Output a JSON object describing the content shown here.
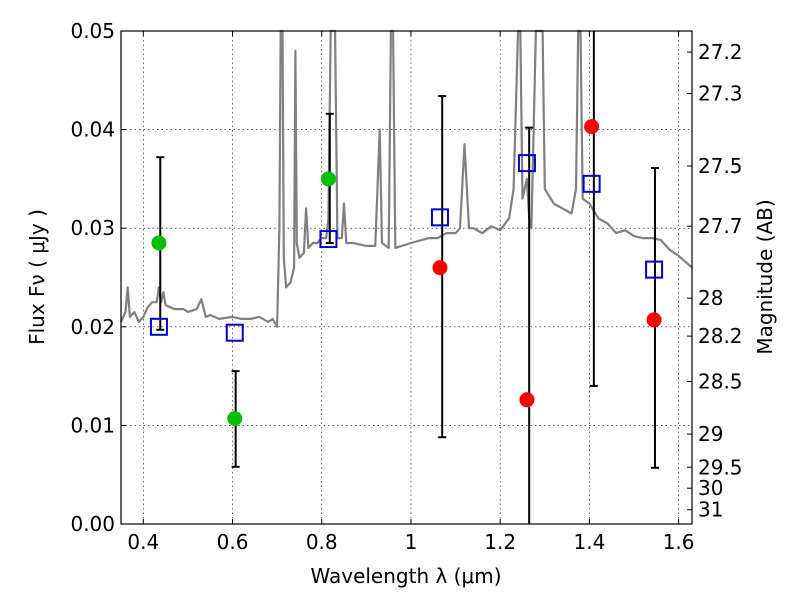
{
  "chart_data": {
    "type": "scatter",
    "xlabel": "Wavelength  λ (μm)",
    "ylabel_left": "Flux  Fν  ( μJy )",
    "ylabel_right": "Magnitude (AB)",
    "xlim": [
      0.35,
      1.63
    ],
    "ylim": [
      0.0,
      0.05
    ],
    "grid": true,
    "x_ticks": [
      0.4,
      0.6,
      0.8,
      1.0,
      1.2,
      1.4,
      1.6
    ],
    "x_tick_labels": [
      "0.4",
      "0.6",
      "0.8",
      "1",
      "1.2",
      "1.4",
      "1.6"
    ],
    "y_ticks": [
      0.0,
      0.01,
      0.02,
      0.03,
      0.04,
      0.05
    ],
    "y_tick_labels": [
      "0.00",
      "0.01",
      "0.02",
      "0.03",
      "0.04",
      "0.05"
    ],
    "right_ticks": [
      {
        "mag": 27.2,
        "label": "27.2"
      },
      {
        "mag": 27.3,
        "label": "27.3"
      },
      {
        "mag": 27.5,
        "label": "27.5"
      },
      {
        "mag": 27.7,
        "label": "27.7"
      },
      {
        "mag": 28.0,
        "label": "28"
      },
      {
        "mag": 28.2,
        "label": "28.2"
      },
      {
        "mag": 28.5,
        "label": "28.5"
      },
      {
        "mag": 29.0,
        "label": "29"
      },
      {
        "mag": 29.5,
        "label": "29.5"
      },
      {
        "mag": 30.0,
        "label": "30"
      },
      {
        "mag": 31.0,
        "label": "31"
      }
    ],
    "model_spectrum": {
      "color": "#808080",
      "points": [
        [
          0.35,
          0.0205
        ],
        [
          0.36,
          0.0215
        ],
        [
          0.365,
          0.024
        ],
        [
          0.37,
          0.021
        ],
        [
          0.38,
          0.0215
        ],
        [
          0.39,
          0.0205
        ],
        [
          0.4,
          0.021
        ],
        [
          0.41,
          0.022
        ],
        [
          0.42,
          0.0225
        ],
        [
          0.43,
          0.0225
        ],
        [
          0.435,
          0.024
        ],
        [
          0.44,
          0.0225
        ],
        [
          0.445,
          0.0235
        ],
        [
          0.45,
          0.0222
        ],
        [
          0.47,
          0.0218
        ],
        [
          0.49,
          0.0218
        ],
        [
          0.5,
          0.0215
        ],
        [
          0.52,
          0.0218
        ],
        [
          0.53,
          0.0228
        ],
        [
          0.54,
          0.021
        ],
        [
          0.55,
          0.0212
        ],
        [
          0.57,
          0.0208
        ],
        [
          0.6,
          0.021
        ],
        [
          0.62,
          0.0208
        ],
        [
          0.64,
          0.0208
        ],
        [
          0.66,
          0.021
        ],
        [
          0.68,
          0.0205
        ],
        [
          0.69,
          0.0208
        ],
        [
          0.7,
          0.02
        ],
        [
          0.705,
          0.03
        ],
        [
          0.708,
          0.05
        ],
        [
          0.712,
          0.05
        ],
        [
          0.715,
          0.027
        ],
        [
          0.72,
          0.024
        ],
        [
          0.73,
          0.0245
        ],
        [
          0.738,
          0.026
        ],
        [
          0.741,
          0.048
        ],
        [
          0.744,
          0.0285
        ],
        [
          0.75,
          0.027
        ],
        [
          0.76,
          0.0275
        ],
        [
          0.765,
          0.032
        ],
        [
          0.77,
          0.028
        ],
        [
          0.78,
          0.0285
        ],
        [
          0.79,
          0.0285
        ],
        [
          0.8,
          0.029
        ],
        [
          0.81,
          0.029
        ],
        [
          0.815,
          0.031
        ],
        [
          0.82,
          0.05
        ],
        [
          0.83,
          0.05
        ],
        [
          0.835,
          0.029
        ],
        [
          0.845,
          0.029
        ],
        [
          0.85,
          0.0325
        ],
        [
          0.855,
          0.0285
        ],
        [
          0.87,
          0.0285
        ],
        [
          0.9,
          0.0282
        ],
        [
          0.92,
          0.0282
        ],
        [
          0.93,
          0.04
        ],
        [
          0.935,
          0.0285
        ],
        [
          0.95,
          0.028
        ],
        [
          0.955,
          0.05
        ],
        [
          0.96,
          0.05
        ],
        [
          0.965,
          0.028
        ],
        [
          1.0,
          0.0285
        ],
        [
          1.04,
          0.029
        ],
        [
          1.06,
          0.029
        ],
        [
          1.08,
          0.0295
        ],
        [
          1.1,
          0.0295
        ],
        [
          1.11,
          0.03
        ],
        [
          1.12,
          0.0385
        ],
        [
          1.13,
          0.03
        ],
        [
          1.14,
          0.03
        ],
        [
          1.16,
          0.0295
        ],
        [
          1.18,
          0.0302
        ],
        [
          1.2,
          0.0298
        ],
        [
          1.22,
          0.031
        ],
        [
          1.23,
          0.034
        ],
        [
          1.24,
          0.05
        ],
        [
          1.245,
          0.05
        ],
        [
          1.25,
          0.033
        ],
        [
          1.26,
          0.035
        ],
        [
          1.265,
          0.031
        ],
        [
          1.27,
          0.03
        ],
        [
          1.28,
          0.05
        ],
        [
          1.295,
          0.05
        ],
        [
          1.3,
          0.034
        ],
        [
          1.32,
          0.0325
        ],
        [
          1.34,
          0.032
        ],
        [
          1.36,
          0.0315
        ],
        [
          1.37,
          0.034
        ],
        [
          1.375,
          0.05
        ],
        [
          1.38,
          0.05
        ],
        [
          1.385,
          0.033
        ],
        [
          1.4,
          0.0325
        ],
        [
          1.42,
          0.031
        ],
        [
          1.44,
          0.0305
        ],
        [
          1.46,
          0.0295
        ],
        [
          1.48,
          0.0298
        ],
        [
          1.5,
          0.0292
        ],
        [
          1.52,
          0.029
        ],
        [
          1.54,
          0.029
        ],
        [
          1.56,
          0.0288
        ],
        [
          1.58,
          0.0278
        ],
        [
          1.6,
          0.0272
        ],
        [
          1.63,
          0.026
        ]
      ]
    },
    "observed_points": [
      {
        "x": 0.435,
        "y": 0.0285
      },
      {
        "x": 0.605,
        "y": 0.0107
      },
      {
        "x": 0.815,
        "y": 0.035
      },
      {
        "x": 1.065,
        "y": 0.026
      },
      {
        "x": 1.26,
        "y": 0.0126
      },
      {
        "x": 1.405,
        "y": 0.0403
      },
      {
        "x": 1.545,
        "y": 0.0207
      }
    ],
    "observed_colors": [
      "#00c000",
      "#00c000",
      "#00c000",
      "#ff0000",
      "#ff0000",
      "#ff0000",
      "#ff0000"
    ],
    "error_bars": [
      {
        "x": 0.438,
        "low": 0.0197,
        "high": 0.0372
      },
      {
        "x": 0.607,
        "low": 0.0058,
        "high": 0.0155
      },
      {
        "x": 0.818,
        "low": 0.0285,
        "high": 0.0416
      },
      {
        "x": 1.07,
        "low": 0.0088,
        "high": 0.0434
      },
      {
        "x": 1.265,
        "low": 0.0,
        "high": 0.0402
      },
      {
        "x": 1.41,
        "low": 0.014,
        "high": 0.05
      },
      {
        "x": 1.547,
        "low": 0.0057,
        "high": 0.0361
      }
    ],
    "model_photometry": [
      {
        "x": 0.435,
        "y": 0.02
      },
      {
        "x": 0.605,
        "y": 0.0194
      },
      {
        "x": 0.815,
        "y": 0.0289
      },
      {
        "x": 1.065,
        "y": 0.0311
      },
      {
        "x": 1.26,
        "y": 0.0366
      },
      {
        "x": 1.405,
        "y": 0.0345
      },
      {
        "x": 1.545,
        "y": 0.0258
      }
    ],
    "model_photometry_color": "#0000cc"
  }
}
